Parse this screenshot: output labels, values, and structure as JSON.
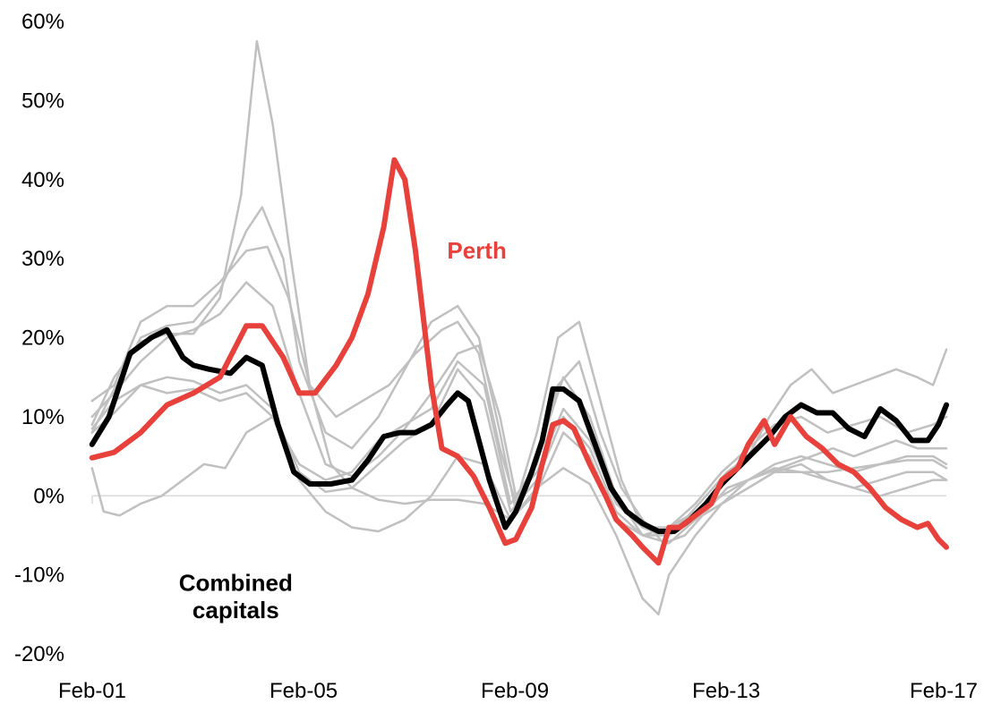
{
  "chart_data": {
    "type": "line",
    "title": "",
    "xlabel": "",
    "ylabel": "",
    "ylim": [
      -20,
      60
    ],
    "y_tick_labels": [
      "-20%",
      "-10%",
      "0%",
      "10%",
      "20%",
      "30%",
      "40%",
      "50%",
      "60%"
    ],
    "y_tick_values": [
      -20,
      -10,
      0,
      10,
      20,
      30,
      40,
      50,
      60
    ],
    "x_tick_labels": [
      "Feb-01",
      "Feb-05",
      "Feb-09",
      "Feb-13",
      "Feb-17"
    ],
    "x_tick_values": [
      2001.083,
      2005.083,
      2009.083,
      2013.083,
      2017.083
    ],
    "xlim": [
      2001.083,
      2017.25
    ],
    "zero_line": true,
    "grid": false,
    "legend": "none",
    "colors": {
      "background_series": "#c0c0c0",
      "perth": "#e8403a",
      "combined": "#000000"
    },
    "annotations": [
      {
        "text": "Perth",
        "color": "#e8403a",
        "x": 2007.8,
        "y": 30,
        "anchor": "start"
      },
      {
        "text": "Combined",
        "color": "#000000",
        "x": 2003.8,
        "y": -12,
        "anchor": "middle"
      },
      {
        "text": "capitals",
        "color": "#000000",
        "x": 2003.8,
        "y": -15.5,
        "anchor": "middle"
      }
    ],
    "series": [
      {
        "name": "Perth",
        "role": "highlight",
        "color": "#e8403a",
        "x": [
          2001.08,
          2001.5,
          2002.0,
          2002.5,
          2003.0,
          2003.5,
          2004.0,
          2004.3,
          2004.7,
          2005.0,
          2005.3,
          2005.7,
          2006.0,
          2006.3,
          2006.6,
          2006.8,
          2007.0,
          2007.2,
          2007.5,
          2007.7,
          2008.0,
          2008.3,
          2008.6,
          2008.9,
          2009.1,
          2009.4,
          2009.6,
          2009.8,
          2010.0,
          2010.2,
          2010.5,
          2010.8,
          2011.0,
          2011.3,
          2011.5,
          2011.8,
          2012.0,
          2012.2,
          2012.5,
          2012.8,
          2013.0,
          2013.3,
          2013.5,
          2013.8,
          2014.0,
          2014.3,
          2014.6,
          2014.9,
          2015.2,
          2015.5,
          2015.8,
          2016.1,
          2016.4,
          2016.7,
          2016.9,
          2017.1,
          2017.25
        ],
        "values": [
          4.8,
          5.5,
          8.0,
          11.5,
          13.0,
          15.0,
          21.5,
          21.5,
          17.5,
          13.0,
          13.0,
          16.5,
          20.0,
          25.5,
          34.0,
          42.5,
          40.0,
          31.0,
          14.0,
          6.0,
          5.0,
          2.5,
          -1.5,
          -6.0,
          -5.5,
          -1.5,
          4.0,
          9.0,
          9.5,
          8.5,
          4.0,
          0.0,
          -3.0,
          -5.0,
          -6.5,
          -8.5,
          -4.0,
          -4.0,
          -2.5,
          -1.0,
          2.0,
          3.5,
          6.5,
          9.5,
          6.5,
          10.0,
          7.5,
          6.0,
          4.0,
          3.0,
          1.0,
          -1.5,
          -3.0,
          -4.0,
          -3.5,
          -5.5,
          -6.5
        ]
      },
      {
        "name": "Combined capitals",
        "role": "highlight",
        "color": "#000000",
        "x": [
          2001.08,
          2001.4,
          2001.8,
          2002.2,
          2002.5,
          2002.8,
          2003.0,
          2003.3,
          2003.7,
          2004.0,
          2004.3,
          2004.6,
          2004.9,
          2005.2,
          2005.6,
          2006.0,
          2006.3,
          2006.6,
          2006.9,
          2007.2,
          2007.5,
          2007.8,
          2008.0,
          2008.2,
          2008.4,
          2008.6,
          2008.9,
          2009.1,
          2009.4,
          2009.6,
          2009.8,
          2010.0,
          2010.3,
          2010.6,
          2010.9,
          2011.2,
          2011.5,
          2011.8,
          2012.1,
          2012.4,
          2012.7,
          2013.0,
          2013.3,
          2013.6,
          2013.9,
          2014.2,
          2014.5,
          2014.8,
          2015.1,
          2015.4,
          2015.7,
          2016.0,
          2016.3,
          2016.6,
          2016.9,
          2017.1,
          2017.25
        ],
        "values": [
          6.5,
          10.0,
          18.0,
          20.0,
          21.0,
          17.5,
          16.5,
          16.0,
          15.5,
          17.5,
          16.5,
          9.0,
          3.0,
          1.5,
          1.5,
          2.0,
          4.5,
          7.5,
          8.0,
          8.0,
          9.0,
          11.5,
          13.0,
          12.0,
          7.0,
          2.0,
          -4.0,
          -2.0,
          3.0,
          7.0,
          13.5,
          13.5,
          12.0,
          6.5,
          1.0,
          -2.0,
          -3.5,
          -4.5,
          -4.5,
          -3.0,
          -1.0,
          1.5,
          3.5,
          5.5,
          7.5,
          10.0,
          11.5,
          10.5,
          10.5,
          8.5,
          7.5,
          11.0,
          9.5,
          7.0,
          7.0,
          9.0,
          11.5
        ]
      },
      {
        "name": "",
        "role": "background",
        "color": "#c0c0c0",
        "x": [
          2001.08,
          2001.5,
          2002.0,
          2002.5,
          2003.0,
          2003.5,
          2003.9,
          2004.2,
          2004.5,
          2004.8,
          2005.2,
          2005.6,
          2006.0,
          2006.5,
          2007.0,
          2007.5,
          2008.0,
          2008.5,
          2009.0,
          2009.5,
          2010.0,
          2010.5,
          2011.0,
          2011.5,
          2011.8,
          2012.0,
          2012.5,
          2013.0,
          2013.5,
          2014.0,
          2014.5,
          2015.0,
          2015.5,
          2016.0,
          2016.5,
          2017.0,
          2017.25
        ],
        "values": [
          9.0,
          15.0,
          19.5,
          20.5,
          20.5,
          25.0,
          38.0,
          57.5,
          47.0,
          32.0,
          14.0,
          4.0,
          1.0,
          -0.5,
          -1.0,
          -0.5,
          -0.5,
          -1.0,
          -3.0,
          1.0,
          3.5,
          1.5,
          -5.0,
          -13.0,
          -15.0,
          -10.0,
          -5.0,
          -1.0,
          2.0,
          3.5,
          3.0,
          3.0,
          3.5,
          4.0,
          4.5,
          4.5,
          3.5
        ]
      },
      {
        "name": "",
        "role": "background",
        "color": "#c0c0c0",
        "x": [
          2001.08,
          2001.5,
          2002.0,
          2002.5,
          2003.0,
          2003.5,
          2004.0,
          2004.3,
          2004.7,
          2005.0,
          2005.5,
          2006.0,
          2006.5,
          2007.0,
          2007.5,
          2008.0,
          2008.4,
          2008.8,
          2009.1,
          2009.5,
          2010.0,
          2010.5,
          2011.0,
          2011.5,
          2012.0,
          2012.5,
          2013.0,
          2013.5,
          2014.0,
          2014.5,
          2015.0,
          2015.5,
          2016.0,
          2016.5,
          2017.0,
          2017.25
        ],
        "values": [
          8.0,
          13.5,
          20.0,
          21.5,
          22.0,
          26.0,
          33.5,
          36.5,
          30.0,
          17.0,
          8.0,
          6.0,
          10.0,
          16.0,
          22.0,
          24.0,
          20.0,
          8.0,
          -2.0,
          5.0,
          15.0,
          10.0,
          0.0,
          -5.0,
          -4.0,
          -1.0,
          3.0,
          6.0,
          9.0,
          10.0,
          8.0,
          9.0,
          10.0,
          8.0,
          9.0,
          10.0
        ]
      },
      {
        "name": "",
        "role": "background",
        "color": "#c0c0c0",
        "x": [
          2001.08,
          2001.5,
          2002.0,
          2002.5,
          2003.0,
          2003.5,
          2004.0,
          2004.4,
          2004.8,
          2005.2,
          2005.7,
          2006.2,
          2006.7,
          2007.2,
          2007.7,
          2008.0,
          2008.4,
          2008.8,
          2009.1,
          2009.5,
          2009.9,
          2010.3,
          2010.7,
          2011.1,
          2011.5,
          2011.9,
          2012.3,
          2012.7,
          2013.1,
          2013.5,
          2013.9,
          2014.3,
          2014.7,
          2015.1,
          2015.5,
          2015.9,
          2016.3,
          2016.7,
          2017.0,
          2017.25
        ],
        "values": [
          12.0,
          14.0,
          22.0,
          24.0,
          24.0,
          27.0,
          31.0,
          31.5,
          25.0,
          14.0,
          10.0,
          12.0,
          14.0,
          18.0,
          21.0,
          22.0,
          18.0,
          6.0,
          -1.0,
          8.0,
          20.0,
          22.0,
          12.0,
          2.0,
          -4.0,
          -5.0,
          -3.0,
          0.0,
          3.0,
          5.0,
          10.0,
          14.0,
          16.0,
          13.0,
          14.0,
          15.0,
          16.0,
          15.0,
          14.0,
          18.5
        ]
      },
      {
        "name": "",
        "role": "background",
        "color": "#c0c0c0",
        "x": [
          2001.08,
          2001.5,
          2002.0,
          2002.5,
          2003.0,
          2003.5,
          2004.0,
          2004.5,
          2005.0,
          2005.5,
          2006.0,
          2006.5,
          2007.0,
          2007.5,
          2008.0,
          2008.4,
          2008.8,
          2009.1,
          2009.5,
          2009.9,
          2010.3,
          2010.7,
          2011.1,
          2011.5,
          2011.9,
          2012.3,
          2012.7,
          2013.1,
          2013.5,
          2013.9,
          2014.3,
          2014.7,
          2015.1,
          2015.5,
          2015.9,
          2016.3,
          2016.7,
          2017.0,
          2017.25
        ],
        "values": [
          10.0,
          13.0,
          17.0,
          20.0,
          21.0,
          23.0,
          27.0,
          24.0,
          13.0,
          4.0,
          2.5,
          5.0,
          8.5,
          13.0,
          18.0,
          19.0,
          10.0,
          0.0,
          4.0,
          14.0,
          17.0,
          8.0,
          1.0,
          -3.0,
          -6.0,
          -5.0,
          -2.0,
          1.0,
          2.0,
          3.0,
          4.0,
          5.0,
          6.0,
          5.0,
          6.0,
          7.0,
          6.0,
          6.0,
          6.0
        ]
      },
      {
        "name": "",
        "role": "background",
        "color": "#c0c0c0",
        "x": [
          2001.08,
          2001.5,
          2002.0,
          2002.5,
          2003.0,
          2003.5,
          2004.0,
          2004.5,
          2005.0,
          2005.5,
          2006.0,
          2006.5,
          2007.0,
          2007.5,
          2008.0,
          2008.5,
          2009.0,
          2009.5,
          2010.0,
          2010.5,
          2011.0,
          2011.5,
          2012.0,
          2012.5,
          2013.0,
          2013.5,
          2014.0,
          2014.5,
          2015.0,
          2015.5,
          2016.0,
          2016.5,
          2017.0,
          2017.25
        ],
        "values": [
          8.5,
          12.0,
          14.0,
          13.0,
          13.5,
          12.0,
          13.0,
          10.0,
          4.0,
          2.0,
          3.0,
          7.0,
          9.0,
          11.0,
          17.0,
          14.0,
          -1.0,
          3.0,
          11.0,
          7.0,
          -1.0,
          -4.0,
          -4.0,
          -2.0,
          0.0,
          2.0,
          4.0,
          5.0,
          4.0,
          3.0,
          4.0,
          5.0,
          5.0,
          4.0
        ]
      },
      {
        "name": "",
        "role": "background",
        "color": "#c0c0c0",
        "x": [
          2001.08,
          2001.5,
          2002.0,
          2002.5,
          2003.0,
          2003.5,
          2004.0,
          2004.5,
          2005.0,
          2005.5,
          2006.0,
          2006.5,
          2007.0,
          2007.5,
          2008.0,
          2008.5,
          2009.0,
          2009.5,
          2010.0,
          2010.5,
          2011.0,
          2011.5,
          2012.0,
          2012.5,
          2013.0,
          2013.5,
          2014.0,
          2014.5,
          2015.0,
          2015.5,
          2016.0,
          2016.5,
          2017.0,
          2017.25
        ],
        "values": [
          8.0,
          10.5,
          14.0,
          15.0,
          14.5,
          13.0,
          14.0,
          11.0,
          3.0,
          0.5,
          1.0,
          4.0,
          7.0,
          9.0,
          16.0,
          12.0,
          -2.0,
          2.0,
          10.0,
          6.0,
          -2.0,
          -5.0,
          -5.0,
          -3.0,
          -1.0,
          1.0,
          3.0,
          4.0,
          2.0,
          1.0,
          2.0,
          3.0,
          3.0,
          2.0
        ]
      },
      {
        "name": "",
        "role": "background",
        "color": "#c0c0c0",
        "x": [
          2001.08,
          2001.3,
          2001.6,
          2002.0,
          2002.4,
          2002.8,
          2003.2,
          2003.6,
          2004.0,
          2004.5,
          2005.0,
          2005.5,
          2006.0,
          2006.5,
          2007.0,
          2007.5,
          2008.0,
          2008.5,
          2009.0,
          2009.5,
          2010.0,
          2010.5,
          2011.0,
          2011.5,
          2012.0,
          2012.5,
          2013.0,
          2013.5,
          2014.0,
          2014.5,
          2015.0,
          2015.5,
          2016.0,
          2016.5,
          2017.0,
          2017.25
        ],
        "values": [
          3.5,
          -2.0,
          -2.5,
          -1.0,
          0.0,
          2.0,
          4.0,
          3.5,
          8.0,
          10.0,
          2.0,
          -2.0,
          -4.0,
          -4.5,
          -3.0,
          0.0,
          5.0,
          4.0,
          -3.0,
          0.5,
          8.0,
          5.0,
          -3.0,
          -5.0,
          -6.0,
          -3.0,
          -1.0,
          1.0,
          3.0,
          3.0,
          2.0,
          1.0,
          0.0,
          1.0,
          2.0,
          2.0
        ]
      }
    ]
  }
}
